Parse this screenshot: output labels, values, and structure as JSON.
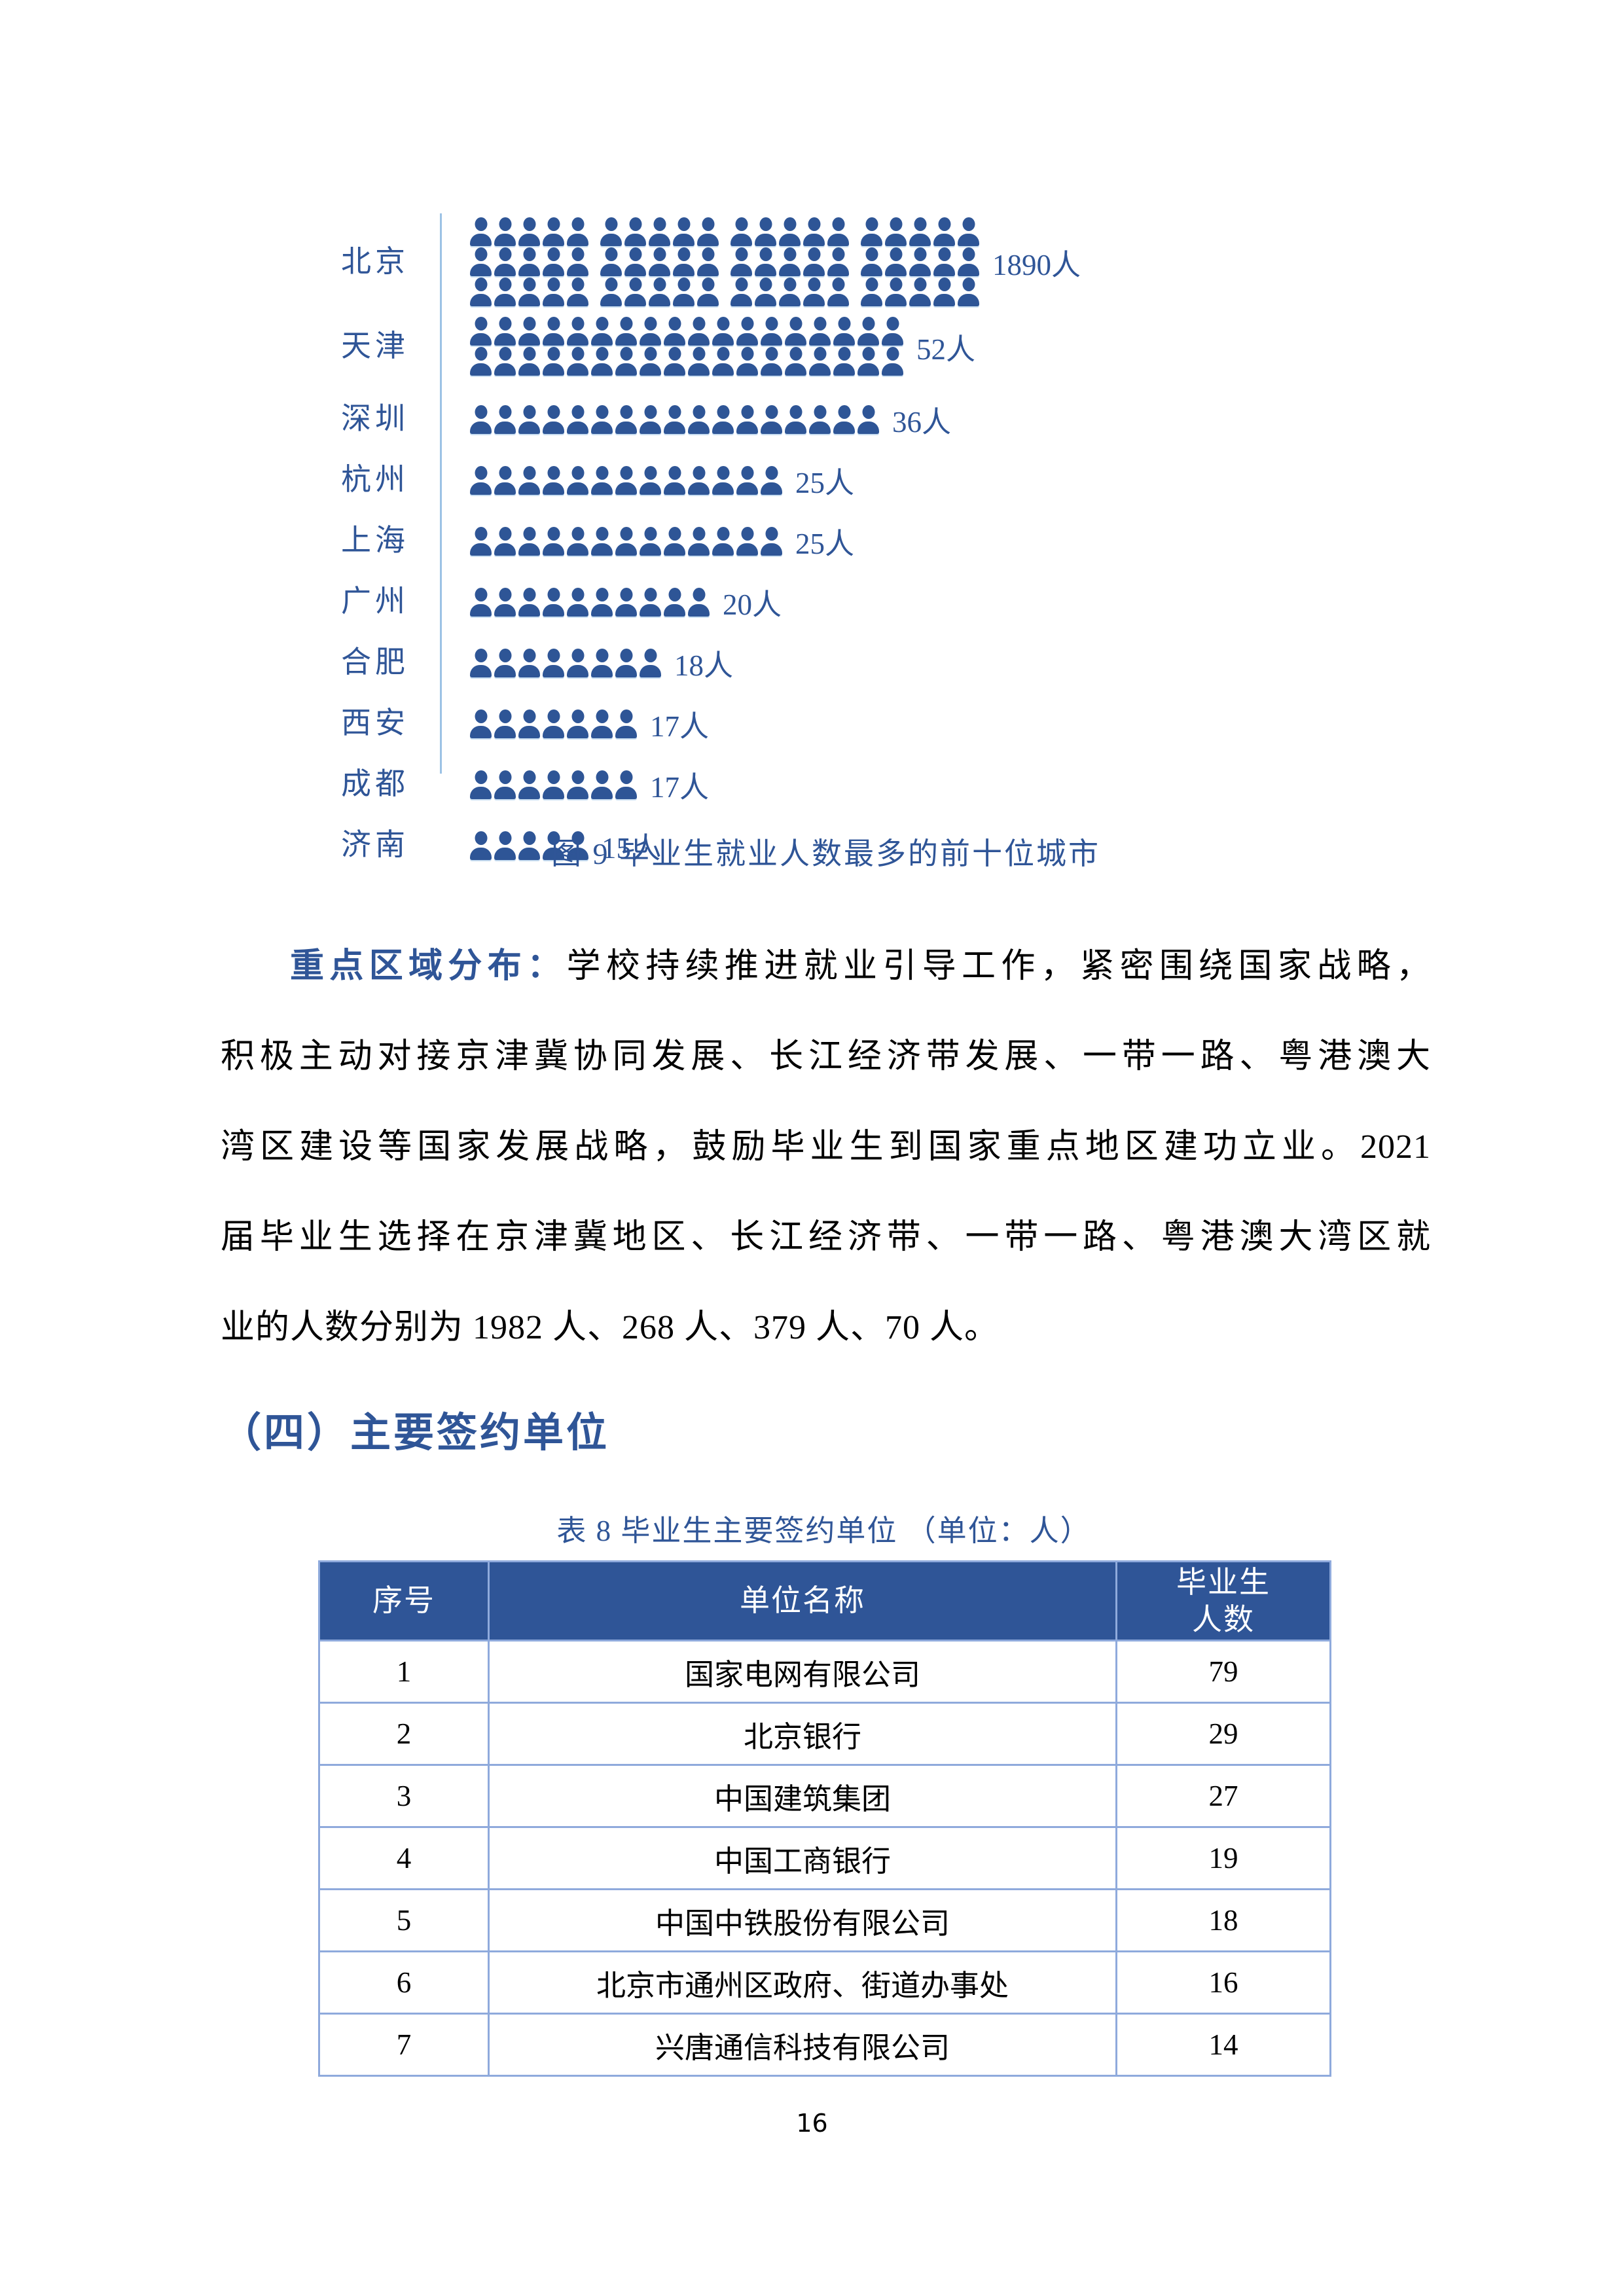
{
  "colors": {
    "text_blue": "#2F5597",
    "icon_blue": "#2E5596",
    "axis_blue": "#9CC2E5",
    "table_border_blue": "#8FAADC",
    "table_header_bg": "#2F5597",
    "table_header_text": "#FFFFFF",
    "body_text": "#000000"
  },
  "chart_data": {
    "type": "pictogram_bar",
    "orientation": "horizontal",
    "title": "图 9  毕业生就业人数最多的前十位城市",
    "unit": "人",
    "categories": [
      "北京",
      "天津",
      "深圳",
      "杭州",
      "上海",
      "广州",
      "合肥",
      "西安",
      "成都",
      "济南"
    ],
    "values": [
      1890,
      52,
      36,
      25,
      25,
      20,
      18,
      17,
      17,
      15
    ],
    "value_labels": [
      "1890人",
      "52人",
      "36人",
      "25人",
      "25人",
      "20人",
      "18人",
      "17人",
      "17人",
      "15人"
    ],
    "icon_rows": [
      [
        20,
        20,
        20
      ],
      [
        18,
        18
      ],
      [
        17
      ],
      [
        13
      ],
      [
        13
      ],
      [
        10
      ],
      [
        8
      ],
      [
        7
      ],
      [
        7
      ],
      [
        5
      ]
    ],
    "grouped_every": [
      5,
      0,
      0,
      0,
      0,
      0,
      0,
      0,
      0,
      0
    ],
    "icon": "person-silhouette",
    "legend": "none"
  },
  "figure_caption": "图 9  毕业生就业人数最多的前十位城市",
  "paragraph": {
    "lead": "重点区域分布：",
    "lines": [
      "学校持续推进就业引导工作，紧密围绕国家战略，",
      "积极主动对接京津冀协同发展、长江经济带发展、一带一路、粤港澳大",
      "湾区建设等国家发展战略，鼓励毕业生到国家重点地区建功立业。2021",
      "届毕业生选择在京津冀地区、长江经济带、一带一路、粤港澳大湾区就",
      "业的人数分别为 1982 人、268 人、379 人、70 人。"
    ]
  },
  "section_heading": "（四）主要签约单位",
  "table": {
    "title": "表 8 毕业生主要签约单位 （单位：人）",
    "headers": [
      "序号",
      "单位名称",
      "毕业生\n人数"
    ],
    "rows": [
      [
        "1",
        "国家电网有限公司",
        "79"
      ],
      [
        "2",
        "北京银行",
        "29"
      ],
      [
        "3",
        "中国建筑集团",
        "27"
      ],
      [
        "4",
        "中国工商银行",
        "19"
      ],
      [
        "5",
        "中国中铁股份有限公司",
        "18"
      ],
      [
        "6",
        "北京市通州区政府、街道办事处",
        "16"
      ],
      [
        "7",
        "兴唐通信科技有限公司",
        "14"
      ]
    ]
  },
  "page_number": "16"
}
